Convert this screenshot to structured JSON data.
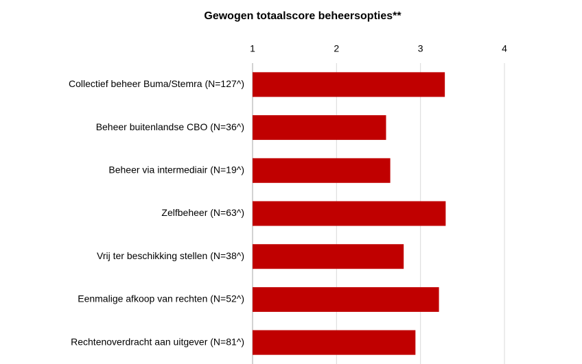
{
  "chart_data": {
    "type": "bar",
    "orientation": "horizontal",
    "title": "Gewogen totaalscore beheersopties**",
    "categories": [
      "Collectief beheer Buma/Stemra (N=127^)",
      "Beheer buitenlandse CBO (N=36^)",
      "Beheer via intermediair (N=19^)",
      "Zelfbeheer (N=63^)",
      "Vrij ter beschikking stellen (N=38^)",
      "Eenmalige afkoop van rechten (N=52^)",
      "Rechtenoverdracht aan uitgever (N=81^)"
    ],
    "values": [
      3.29,
      2.59,
      2.64,
      3.3,
      2.8,
      3.22,
      2.94
    ],
    "color": "#c00000",
    "xlim": [
      1,
      4
    ],
    "xticks": [
      1,
      2,
      3,
      4
    ],
    "grid": true,
    "x_axis_position": "top"
  }
}
